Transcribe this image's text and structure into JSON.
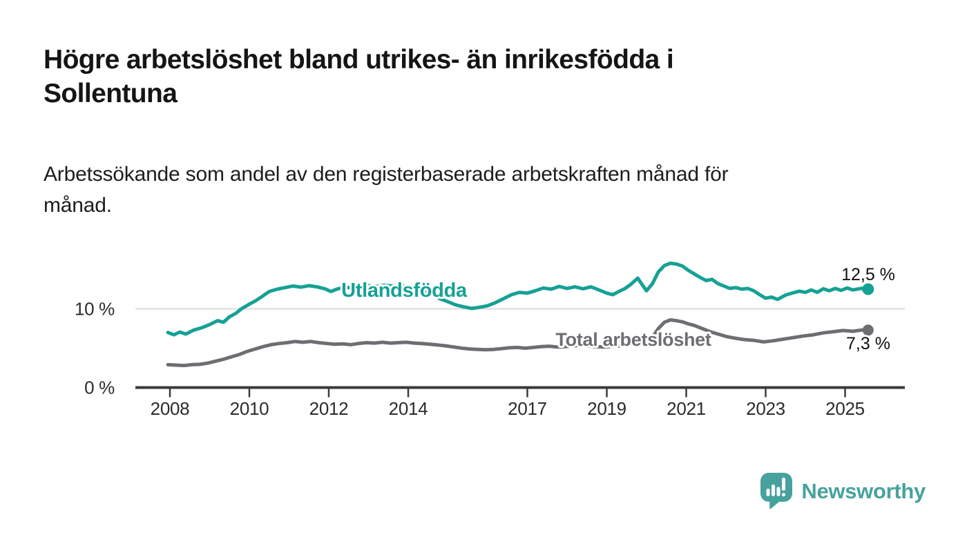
{
  "title": "Högre arbetslöshet bland utrikes- än inrikesfödda i Sollentuna",
  "title_lines": [
    "Högre arbetslöshet bland utrikes- än inrikesfödda i",
    "Sollentuna"
  ],
  "subtitle": "Arbetssökande som andel av den registerbaserade arbetskraften månad för månad.",
  "subtitle_lines": [
    "Arbetssökande som andel av den registerbaserade arbetskraften månad för",
    "månad."
  ],
  "footer": {
    "brand": "Newsworthy",
    "logo_icon": "bar-chart-speech-bubble-icon"
  },
  "colors": {
    "foreign_born_series": "#16A195",
    "total_series": "#6F6C72",
    "grid_line": "#DBDBDB",
    "axis": "#3A3A3A",
    "axis_text": "#2B2B2B",
    "value_text": "#111111",
    "title_text": "#151515",
    "logo_teal": "#47A29D",
    "background": "#FFFFFF"
  },
  "chart_data": {
    "type": "line",
    "title": "Högre arbetslöshet bland utrikes- än inrikesfödda i Sollentuna",
    "subtitle": "Arbetssökande som andel av den registerbaserade arbetskraften månad för månad.",
    "xlabel": "",
    "ylabel": "",
    "xlim": [
      2007.9,
      2026.1
    ],
    "ylim": [
      0,
      17.5
    ],
    "grid": "single horizontal gridline at 10 %",
    "legend": "inline labels on lines, end values labeled at right",
    "x_ticks": [
      2008,
      2010,
      2012,
      2014,
      2017,
      2019,
      2021,
      2023,
      2025
    ],
    "x_tick_labels": [
      "2008",
      "2010",
      "2012",
      "2014",
      "2017",
      "2019",
      "2021",
      "2023",
      "2025"
    ],
    "y_ticks": [
      0,
      10
    ],
    "y_tick_labels": [
      "0 %",
      "10 %"
    ],
    "series": [
      {
        "name": "Utlandsfödda",
        "color": "#16A195",
        "end_label": "12,5 %",
        "end_value": 12.5,
        "x": [
          2007.95,
          2008.1,
          2008.25,
          2008.4,
          2008.6,
          2008.8,
          2009.0,
          2009.2,
          2009.35,
          2009.5,
          2009.65,
          2009.8,
          2010.0,
          2010.15,
          2010.3,
          2010.5,
          2010.7,
          2010.9,
          2011.1,
          2011.3,
          2011.5,
          2011.7,
          2011.9,
          2012.05,
          2012.2,
          2012.4,
          2012.6,
          2012.8,
          2013.0,
          2013.2,
          2013.4,
          2013.6,
          2013.8,
          2014.0,
          2014.2,
          2014.4,
          2014.6,
          2014.8,
          2015.0,
          2015.2,
          2015.4,
          2015.6,
          2015.8,
          2016.0,
          2016.2,
          2016.4,
          2016.6,
          2016.8,
          2017.0,
          2017.2,
          2017.4,
          2017.6,
          2017.8,
          2018.0,
          2018.2,
          2018.4,
          2018.6,
          2018.8,
          2019.0,
          2019.15,
          2019.3,
          2019.45,
          2019.6,
          2019.78,
          2019.9,
          2020.0,
          2020.15,
          2020.3,
          2020.45,
          2020.6,
          2020.75,
          2020.9,
          2021.05,
          2021.2,
          2021.35,
          2021.5,
          2021.65,
          2021.8,
          2021.95,
          2022.1,
          2022.25,
          2022.4,
          2022.55,
          2022.7,
          2022.85,
          2023.0,
          2023.15,
          2023.3,
          2023.5,
          2023.7,
          2023.85,
          2024.0,
          2024.15,
          2024.3,
          2024.45,
          2024.6,
          2024.75,
          2024.9,
          2025.05,
          2025.2,
          2025.4,
          2025.58
        ],
        "values": [
          7.0,
          6.7,
          7.05,
          6.8,
          7.3,
          7.6,
          8.0,
          8.5,
          8.3,
          9.0,
          9.4,
          10.0,
          10.6,
          11.0,
          11.5,
          12.2,
          12.5,
          12.7,
          12.9,
          12.75,
          12.95,
          12.8,
          12.55,
          12.2,
          12.5,
          12.75,
          12.65,
          12.9,
          12.95,
          12.85,
          13.0,
          12.9,
          12.95,
          12.8,
          12.55,
          12.2,
          11.8,
          11.3,
          10.9,
          10.5,
          10.25,
          10.05,
          10.2,
          10.4,
          10.8,
          11.3,
          11.8,
          12.1,
          12.0,
          12.3,
          12.65,
          12.5,
          12.85,
          12.6,
          12.8,
          12.55,
          12.8,
          12.4,
          12.0,
          11.8,
          12.2,
          12.55,
          13.1,
          13.9,
          13.0,
          12.3,
          13.2,
          14.7,
          15.5,
          15.8,
          15.7,
          15.45,
          14.9,
          14.45,
          14.0,
          13.6,
          13.75,
          13.2,
          12.9,
          12.6,
          12.7,
          12.5,
          12.6,
          12.3,
          11.8,
          11.35,
          11.5,
          11.2,
          11.75,
          12.05,
          12.25,
          12.1,
          12.4,
          12.1,
          12.55,
          12.3,
          12.6,
          12.35,
          12.65,
          12.4,
          12.6,
          12.5
        ]
      },
      {
        "name": "Total arbetslöshet",
        "color": "#6F6C72",
        "end_label": "7,3 %",
        "end_value": 7.3,
        "x": [
          2007.95,
          2008.15,
          2008.35,
          2008.55,
          2008.75,
          2008.95,
          2009.15,
          2009.35,
          2009.55,
          2009.75,
          2009.95,
          2010.15,
          2010.35,
          2010.55,
          2010.75,
          2010.95,
          2011.15,
          2011.35,
          2011.55,
          2011.75,
          2011.95,
          2012.15,
          2012.35,
          2012.55,
          2012.75,
          2012.95,
          2013.15,
          2013.35,
          2013.55,
          2013.75,
          2013.95,
          2014.15,
          2014.35,
          2014.55,
          2014.75,
          2014.95,
          2015.15,
          2015.35,
          2015.55,
          2015.75,
          2015.95,
          2016.15,
          2016.35,
          2016.55,
          2016.75,
          2016.95,
          2017.15,
          2017.35,
          2017.55,
          2017.75,
          2017.95,
          2018.15,
          2018.35,
          2018.55,
          2018.75,
          2018.95,
          2019.15,
          2019.35,
          2019.55,
          2019.75,
          2019.9,
          2020.0,
          2020.15,
          2020.3,
          2020.45,
          2020.6,
          2020.75,
          2020.9,
          2021.05,
          2021.2,
          2021.4,
          2021.6,
          2021.8,
          2022.0,
          2022.2,
          2022.45,
          2022.7,
          2022.95,
          2023.2,
          2023.45,
          2023.7,
          2023.95,
          2024.2,
          2024.45,
          2024.7,
          2024.95,
          2025.2,
          2025.4,
          2025.58
        ],
        "values": [
          2.9,
          2.85,
          2.8,
          2.9,
          2.95,
          3.1,
          3.35,
          3.6,
          3.9,
          4.2,
          4.6,
          4.9,
          5.2,
          5.45,
          5.6,
          5.7,
          5.85,
          5.75,
          5.85,
          5.7,
          5.6,
          5.5,
          5.55,
          5.45,
          5.6,
          5.7,
          5.65,
          5.75,
          5.65,
          5.7,
          5.75,
          5.65,
          5.6,
          5.5,
          5.4,
          5.3,
          5.15,
          5.0,
          4.9,
          4.85,
          4.8,
          4.85,
          4.95,
          5.05,
          5.1,
          5.0,
          5.1,
          5.2,
          5.25,
          5.15,
          5.2,
          5.3,
          5.35,
          5.25,
          5.2,
          5.15,
          5.25,
          5.3,
          5.45,
          5.7,
          5.8,
          5.75,
          6.4,
          7.5,
          8.3,
          8.6,
          8.5,
          8.35,
          8.1,
          7.9,
          7.5,
          7.1,
          6.8,
          6.5,
          6.3,
          6.1,
          6.0,
          5.8,
          5.95,
          6.15,
          6.35,
          6.55,
          6.7,
          6.95,
          7.1,
          7.25,
          7.15,
          7.3,
          7.3
        ]
      }
    ]
  }
}
